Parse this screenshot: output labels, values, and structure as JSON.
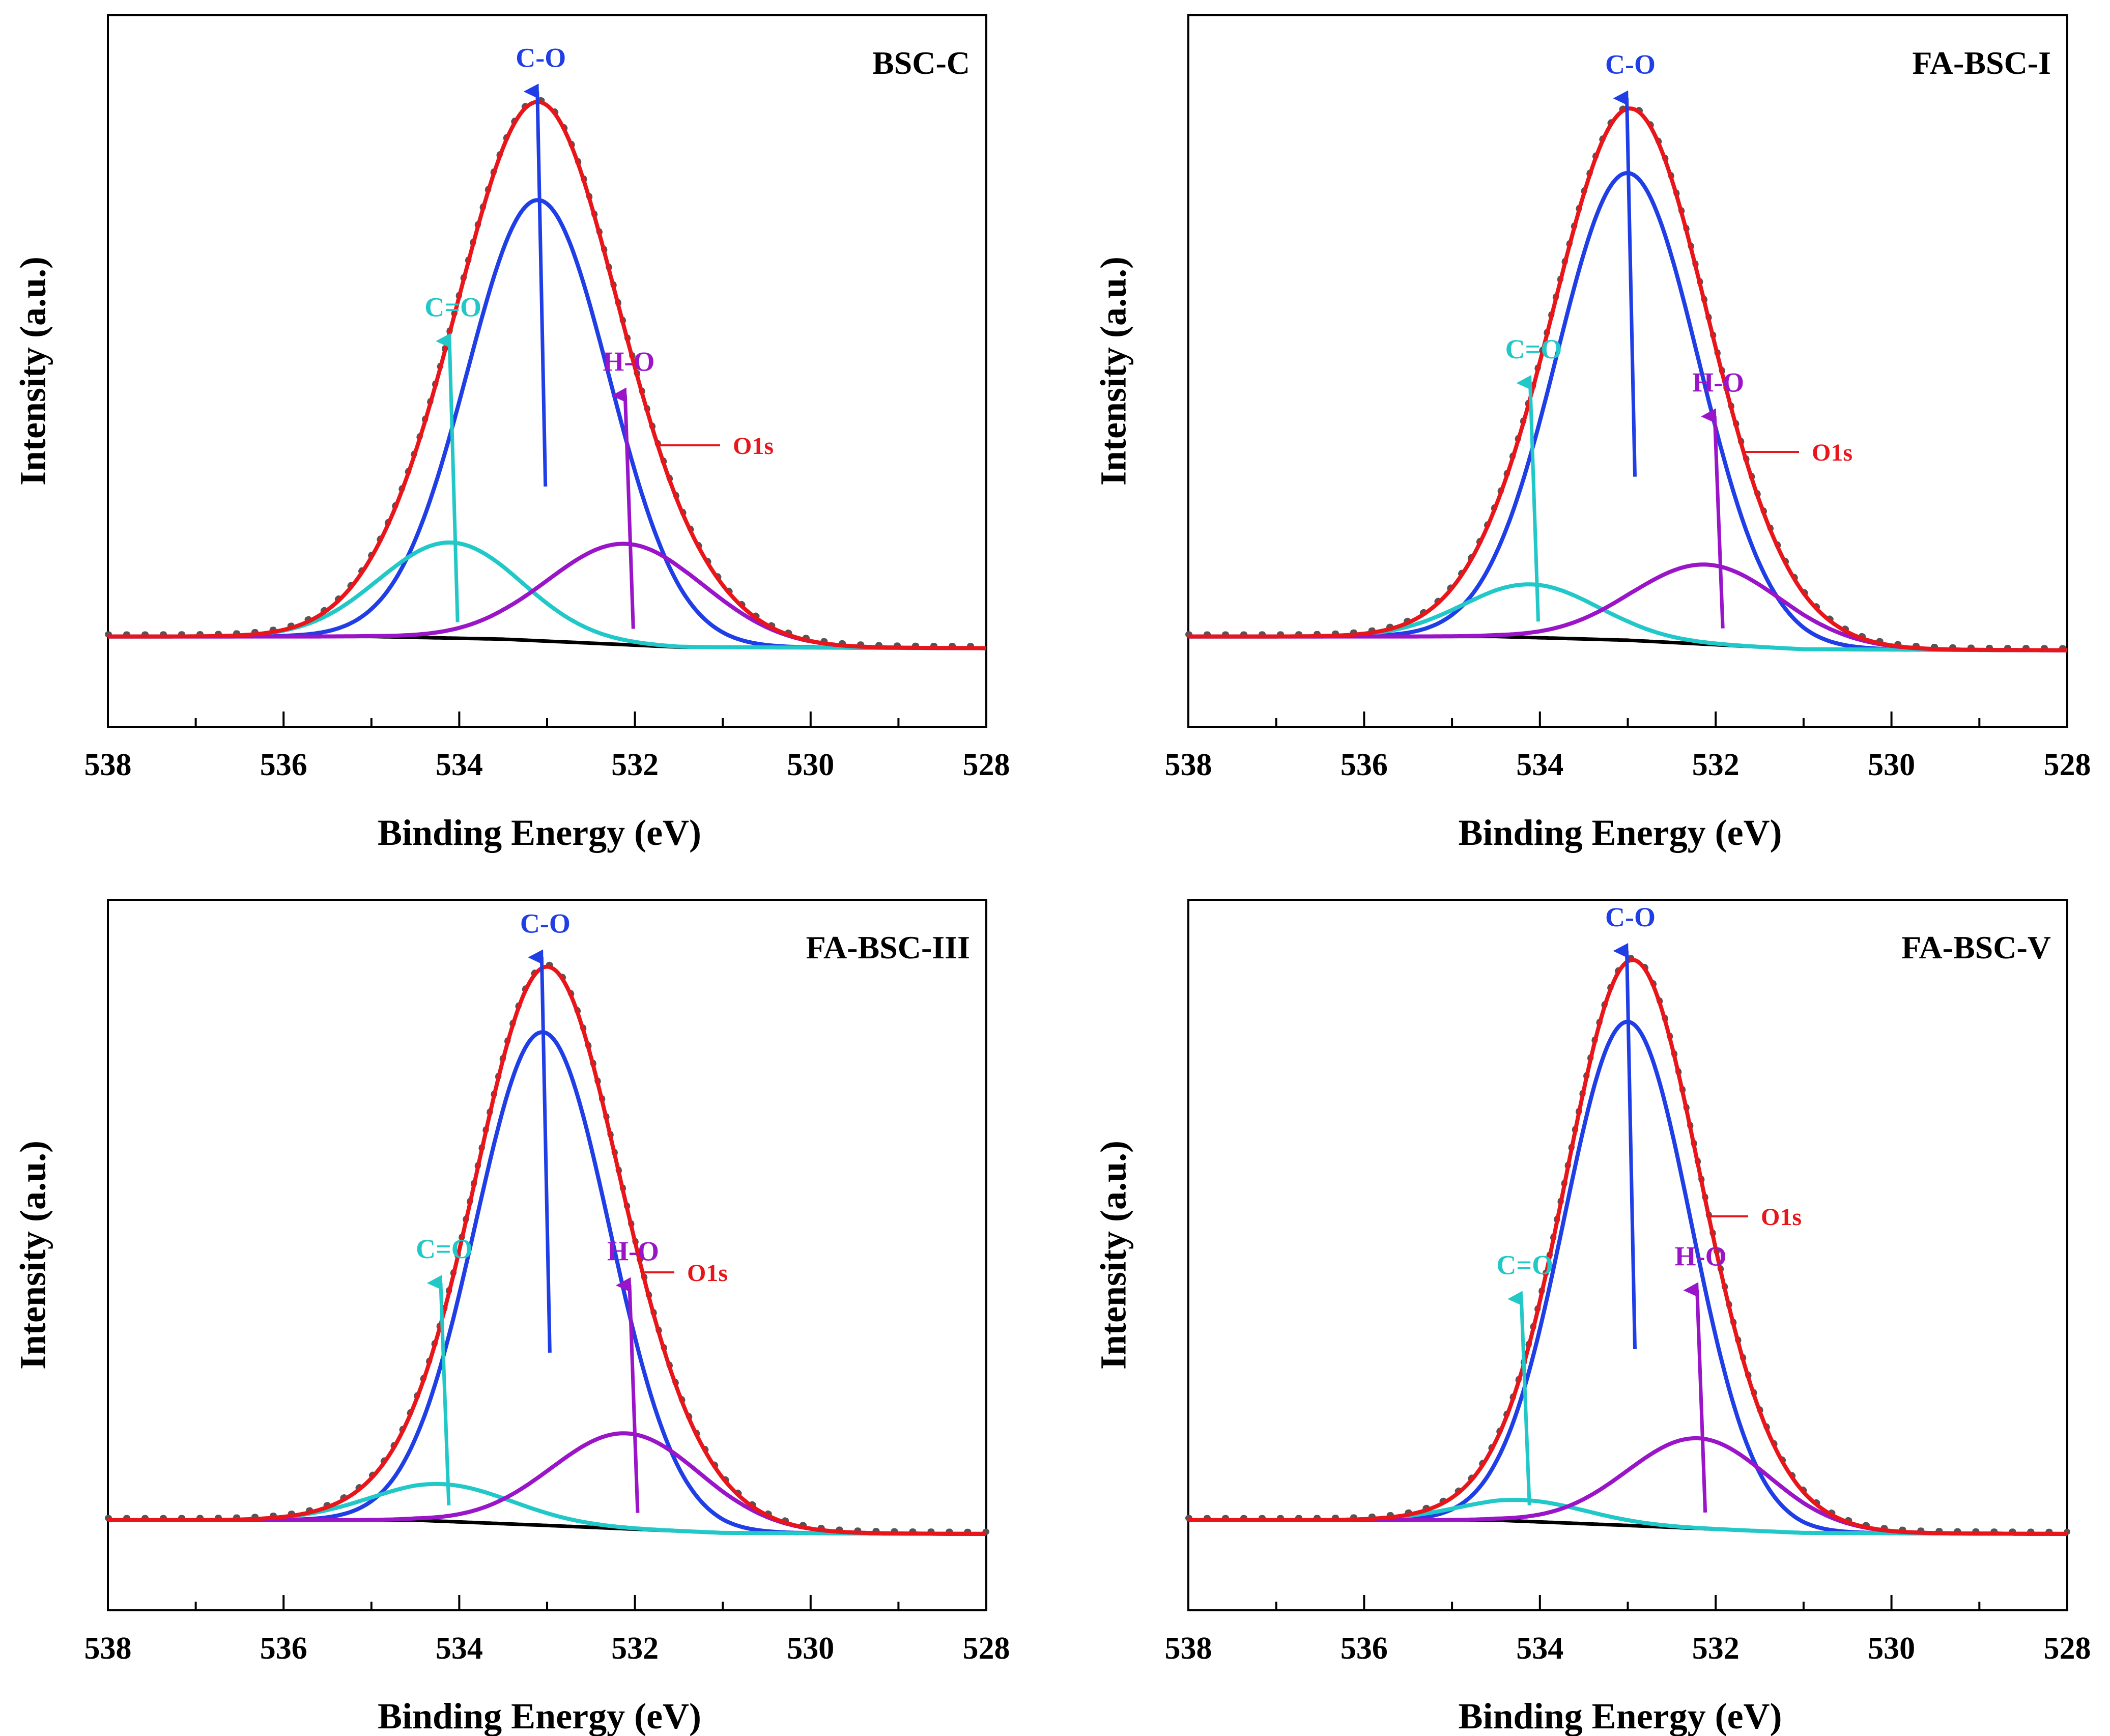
{
  "colors": {
    "envelope": "#e8161b",
    "c_o": "#1f3ee6",
    "c_eq_o": "#22c8c8",
    "h_o": "#9a14c8",
    "baseline": "#000000",
    "raw": "#555555"
  },
  "chart_data": [
    {
      "type": "line",
      "title": "BSC-C",
      "xlabel": "Binding Energy (eV)",
      "ylabel": "Intensity (a.u.)",
      "xlim": [
        538,
        528
      ],
      "xticks": [
        "538",
        "536",
        "534",
        "532",
        "530",
        "528"
      ],
      "ylim": [
        -0.17,
        1.17
      ],
      "baseline": [
        {
          "x": 538,
          "y": 0.0
        },
        {
          "x": 535,
          "y": 0.0
        },
        {
          "x": 533.5,
          "y": -0.005
        },
        {
          "x": 531.5,
          "y": -0.02
        },
        {
          "x": 528,
          "y": -0.022
        }
      ],
      "series": [
        {
          "name": "C-O",
          "center": 533.1,
          "height": 0.83,
          "fwhm": 1.9
        },
        {
          "name": "C=O",
          "center": 534.1,
          "height": 0.18,
          "fwhm": 1.9
        },
        {
          "name": "H-O",
          "center": 532.1,
          "height": 0.19,
          "fwhm": 2.1
        },
        {
          "name": "O1s"
        }
      ],
      "annotations": [
        {
          "text": "C-O",
          "x": 533.1
        },
        {
          "text": "C=O",
          "x": 534.1
        },
        {
          "text": "H-O",
          "x": 532.1
        },
        {
          "text": "O1s"
        }
      ]
    },
    {
      "type": "line",
      "title": "FA-BSC-I",
      "xlabel": "Binding Energy (eV)",
      "ylabel": "Intensity (a.u.)",
      "xlim": [
        538,
        528
      ],
      "xticks": [
        "538",
        "536",
        "534",
        "532",
        "530",
        "528"
      ],
      "ylim": [
        -0.17,
        1.17
      ],
      "baseline": [
        {
          "x": 538,
          "y": 0.0
        },
        {
          "x": 534.5,
          "y": 0.0
        },
        {
          "x": 533,
          "y": -0.007
        },
        {
          "x": 531,
          "y": -0.024
        },
        {
          "x": 528,
          "y": -0.026
        }
      ],
      "series": [
        {
          "name": "C-O",
          "center": 533.0,
          "height": 0.88,
          "fwhm": 1.9
        },
        {
          "name": "C=O",
          "center": 534.1,
          "height": 0.1,
          "fwhm": 1.8
        },
        {
          "name": "H-O",
          "center": 532.1,
          "height": 0.15,
          "fwhm": 2.0
        },
        {
          "name": "O1s"
        }
      ],
      "annotations": [
        {
          "text": "C-O",
          "x": 533.0
        },
        {
          "text": "C=O",
          "x": 534.1
        },
        {
          "text": "H-O",
          "x": 532.0
        },
        {
          "text": "O1s"
        }
      ]
    },
    {
      "type": "line",
      "title": "FA-BSC-III",
      "xlabel": "Binding Energy (eV)",
      "ylabel": "Intensity (a.u.)",
      "xlim": [
        538,
        528
      ],
      "xticks": [
        "538",
        "536",
        "534",
        "532",
        "530",
        "528"
      ],
      "ylim": [
        -0.17,
        1.17
      ],
      "baseline": [
        {
          "x": 538,
          "y": 0.0
        },
        {
          "x": 534.5,
          "y": 0.0
        },
        {
          "x": 533,
          "y": -0.01
        },
        {
          "x": 531,
          "y": -0.024
        },
        {
          "x": 528,
          "y": -0.026
        }
      ],
      "series": [
        {
          "name": "C-O",
          "center": 533.05,
          "height": 0.93,
          "fwhm": 1.8
        },
        {
          "name": "C=O",
          "center": 534.2,
          "height": 0.07,
          "fwhm": 1.9
        },
        {
          "name": "H-O",
          "center": 532.1,
          "height": 0.18,
          "fwhm": 2.0
        },
        {
          "name": "O1s"
        }
      ],
      "annotations": [
        {
          "text": "C-O",
          "x": 533.05
        },
        {
          "text": "C=O",
          "x": 534.2
        },
        {
          "text": "H-O",
          "x": 532.05
        },
        {
          "text": "O1s"
        }
      ]
    },
    {
      "type": "line",
      "title": "FA-BSC-V",
      "xlabel": "Binding Energy (eV)",
      "ylabel": "Intensity (a.u.)",
      "xlim": [
        538,
        528
      ],
      "xticks": [
        "538",
        "536",
        "534",
        "532",
        "530",
        "528"
      ],
      "ylim": [
        -0.17,
        1.17
      ],
      "baseline": [
        {
          "x": 538,
          "y": 0.0
        },
        {
          "x": 534.5,
          "y": 0.0
        },
        {
          "x": 533,
          "y": -0.01
        },
        {
          "x": 531,
          "y": -0.024
        },
        {
          "x": 528,
          "y": -0.026
        }
      ],
      "series": [
        {
          "name": "C-O",
          "center": 533.0,
          "height": 0.95,
          "fwhm": 1.7
        },
        {
          "name": "C=O",
          "center": 534.2,
          "height": 0.04,
          "fwhm": 1.7
        },
        {
          "name": "H-O",
          "center": 532.2,
          "height": 0.17,
          "fwhm": 1.9
        },
        {
          "name": "O1s"
        }
      ],
      "annotations": [
        {
          "text": "C-O",
          "x": 533.0
        },
        {
          "text": "C=O",
          "x": 534.2
        },
        {
          "text": "H-O",
          "x": 532.2
        },
        {
          "text": "O1s"
        }
      ]
    }
  ]
}
